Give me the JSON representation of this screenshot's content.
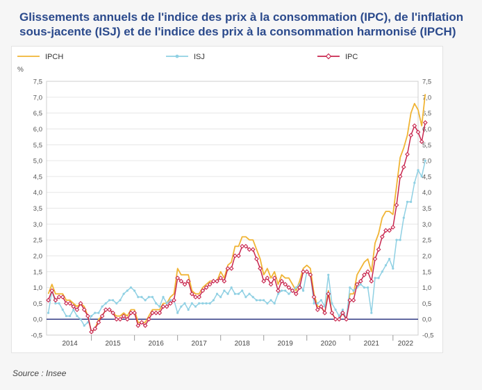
{
  "header": {
    "title": "Glissements annuels de l'indice des prix à la consommation (IPC), de l'inflation sous-jacente (ISJ) et de l'indice des prix à la consommation harmonisé (IPCH)"
  },
  "footer": {
    "source": "Source : Insee"
  },
  "chart_data": {
    "type": "line",
    "ylabel": "%",
    "ylim": [
      -0.5,
      7.5
    ],
    "yticks": [
      "-0,5",
      "0,0",
      "0,5",
      "1,0",
      "1,5",
      "2,0",
      "2,5",
      "3,0",
      "3,5",
      "4,0",
      "4,5",
      "5,0",
      "5,5",
      "6,0",
      "6,5",
      "7,0",
      "7,5"
    ],
    "x_start": "2014-01",
    "x_end": "2022-07",
    "years": [
      "2014",
      "2015",
      "2016",
      "2017",
      "2018",
      "2019",
      "2020",
      "2021",
      "2022"
    ],
    "legend_position": "top",
    "zero_line": true,
    "series": [
      {
        "name": "IPCH",
        "color": "#f0b434",
        "marker": "none",
        "values": [
          0.8,
          1.1,
          0.8,
          0.8,
          0.8,
          0.6,
          0.6,
          0.5,
          0.4,
          0.5,
          0.4,
          0.1,
          -0.4,
          -0.3,
          0.0,
          0.1,
          0.3,
          0.3,
          0.2,
          0.1,
          0.1,
          0.2,
          0.1,
          0.3,
          0.3,
          -0.1,
          -0.1,
          -0.1,
          0.1,
          0.3,
          0.3,
          0.3,
          0.5,
          0.5,
          0.7,
          0.8,
          1.6,
          1.4,
          1.4,
          1.4,
          0.9,
          0.8,
          0.8,
          1.0,
          1.1,
          1.2,
          1.2,
          1.2,
          1.5,
          1.3,
          1.7,
          1.8,
          2.3,
          2.3,
          2.6,
          2.6,
          2.5,
          2.5,
          2.2,
          1.9,
          1.4,
          1.6,
          1.3,
          1.5,
          1.1,
          1.4,
          1.3,
          1.3,
          1.1,
          0.9,
          1.2,
          1.6,
          1.7,
          1.6,
          0.8,
          0.4,
          0.4,
          0.2,
          0.9,
          0.2,
          0.0,
          0.0,
          0.2,
          0.0,
          0.8,
          0.8,
          1.4,
          1.6,
          1.8,
          1.9,
          1.5,
          2.4,
          2.7,
          3.2,
          3.4,
          3.4,
          3.3,
          4.2,
          5.1,
          5.4,
          5.8,
          6.5,
          6.8,
          6.6,
          6.1,
          7.1
        ]
      },
      {
        "name": "ISJ",
        "color": "#8fd0e3",
        "marker": "dot",
        "values": [
          0.2,
          0.9,
          0.5,
          0.5,
          0.3,
          0.1,
          0.1,
          0.3,
          0.1,
          0.0,
          -0.2,
          -0.1,
          0.1,
          0.2,
          0.2,
          0.4,
          0.5,
          0.6,
          0.6,
          0.5,
          0.6,
          0.8,
          0.9,
          1.0,
          0.9,
          0.7,
          0.7,
          0.6,
          0.7,
          0.7,
          0.5,
          0.4,
          0.7,
          0.5,
          0.6,
          0.6,
          0.2,
          0.4,
          0.5,
          0.3,
          0.5,
          0.4,
          0.5,
          0.5,
          0.5,
          0.5,
          0.6,
          0.8,
          0.7,
          0.9,
          0.8,
          1.0,
          0.8,
          0.8,
          0.9,
          0.7,
          0.8,
          0.7,
          0.6,
          0.6,
          0.6,
          0.5,
          0.6,
          0.5,
          0.8,
          0.9,
          0.9,
          0.8,
          0.9,
          1.0,
          1.1,
          0.9,
          1.5,
          1.4,
          0.5,
          0.5,
          0.6,
          0.4,
          1.4,
          0.5,
          0.3,
          0.1,
          0.3,
          0.0,
          1.0,
          0.9,
          1.0,
          1.1,
          1.0,
          1.0,
          0.2,
          1.3,
          1.3,
          1.5,
          1.7,
          1.9,
          1.6,
          2.5,
          2.5,
          3.2,
          3.7,
          3.7,
          4.3,
          4.7,
          4.5,
          5.0
        ]
      },
      {
        "name": "IPC",
        "color": "#c8264e",
        "marker": "diamond",
        "values": [
          0.6,
          0.9,
          0.6,
          0.7,
          0.7,
          0.5,
          0.5,
          0.4,
          0.3,
          0.5,
          0.3,
          0.1,
          -0.4,
          -0.3,
          -0.1,
          0.1,
          0.3,
          0.3,
          0.2,
          0.0,
          0.0,
          0.1,
          0.0,
          0.2,
          0.2,
          -0.2,
          -0.1,
          -0.2,
          0.0,
          0.2,
          0.2,
          0.2,
          0.4,
          0.4,
          0.5,
          0.6,
          1.3,
          1.2,
          1.1,
          1.2,
          0.8,
          0.7,
          0.7,
          0.9,
          1.0,
          1.1,
          1.2,
          1.2,
          1.3,
          1.2,
          1.6,
          1.6,
          2.0,
          2.0,
          2.3,
          2.3,
          2.2,
          2.2,
          1.9,
          1.6,
          1.2,
          1.3,
          1.1,
          1.3,
          0.9,
          1.2,
          1.1,
          1.0,
          0.9,
          0.8,
          1.0,
          1.5,
          1.5,
          1.4,
          0.7,
          0.3,
          0.4,
          0.2,
          0.8,
          0.2,
          0.0,
          0.0,
          0.2,
          0.0,
          0.6,
          0.6,
          1.1,
          1.2,
          1.4,
          1.5,
          1.2,
          1.9,
          2.2,
          2.6,
          2.8,
          2.8,
          2.9,
          3.6,
          4.5,
          4.8,
          5.2,
          5.8,
          6.1,
          5.9,
          5.6,
          6.2
        ]
      }
    ]
  }
}
